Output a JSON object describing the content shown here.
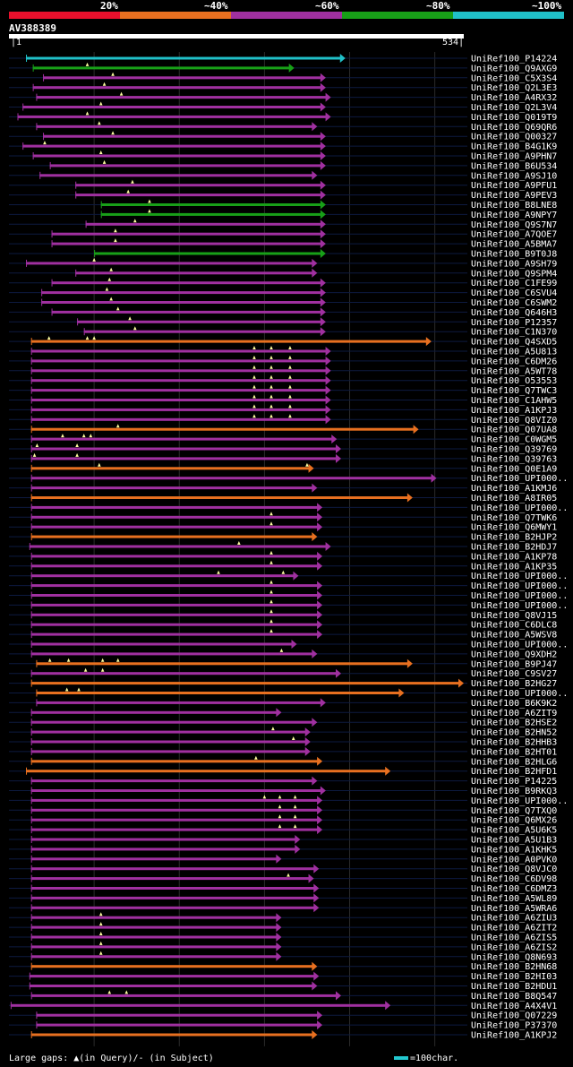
{
  "chart_data": {
    "type": "alignment-overview",
    "query": {
      "name": "AV388389",
      "start": 1,
      "end": 534
    },
    "identity_scale": [
      {
        "label": "20%",
        "color": "#e8102c"
      },
      {
        "label": "~40%",
        "color": "#e87020"
      },
      {
        "label": "~60%",
        "color": "#a030a0"
      },
      {
        "label": "~80%",
        "color": "#18a018"
      },
      {
        "label": "~100%",
        "color": "#20c0c8"
      }
    ],
    "gridlines": [
      100,
      200,
      300,
      400,
      500
    ],
    "legend": {
      "gaps": "Large gaps: ▲(in Query)/- (in Subject)",
      "scale": "=100char."
    },
    "hits": [
      {
        "name": "UniRef100_P14224",
        "start": 20,
        "end": 395,
        "color": "cyan",
        "gaps": []
      },
      {
        "name": "UniRef100_Q9AXG9",
        "start": 28,
        "end": 335,
        "color": "green",
        "gaps": [
          92
        ]
      },
      {
        "name": "UniRef100_C5X3S4",
        "start": 40,
        "end": 372,
        "color": "purple",
        "gaps": [
          122
        ]
      },
      {
        "name": "UniRef100_Q2L3E3",
        "start": 28,
        "end": 372,
        "color": "purple",
        "gaps": [
          112
        ]
      },
      {
        "name": "UniRef100_A4RX32",
        "start": 32,
        "end": 378,
        "color": "purple",
        "gaps": [
          132
        ]
      },
      {
        "name": "UniRef100_Q2L3V4",
        "start": 16,
        "end": 372,
        "color": "purple",
        "gaps": [
          108
        ]
      },
      {
        "name": "UniRef100_Q019T9",
        "start": 10,
        "end": 378,
        "color": "purple",
        "gaps": [
          92
        ]
      },
      {
        "name": "UniRef100_Q69QR6",
        "start": 32,
        "end": 362,
        "color": "purple",
        "gaps": [
          106
        ]
      },
      {
        "name": "UniRef100_Q00327",
        "start": 40,
        "end": 372,
        "color": "purple",
        "gaps": [
          122
        ]
      },
      {
        "name": "UniRef100_B4G1K9",
        "start": 16,
        "end": 372,
        "color": "purple",
        "gaps": [
          42
        ]
      },
      {
        "name": "UniRef100_A9PHN7",
        "start": 28,
        "end": 372,
        "color": "purple",
        "gaps": [
          108
        ]
      },
      {
        "name": "UniRef100_B6U534",
        "start": 48,
        "end": 372,
        "color": "purple",
        "gaps": [
          112
        ]
      },
      {
        "name": "UniRef100_A9SJ10",
        "start": 36,
        "end": 362,
        "color": "purple",
        "gaps": []
      },
      {
        "name": "UniRef100_A9PFU1",
        "start": 78,
        "end": 372,
        "color": "purple",
        "gaps": [
          145
        ]
      },
      {
        "name": "UniRef100_A9PEV3",
        "start": 78,
        "end": 372,
        "color": "purple",
        "gaps": [
          140
        ]
      },
      {
        "name": "UniRef100_B8LNE8",
        "start": 108,
        "end": 372,
        "color": "green",
        "gaps": [
          165
        ]
      },
      {
        "name": "UniRef100_A9NPY7",
        "start": 108,
        "end": 372,
        "color": "green",
        "gaps": [
          165
        ]
      },
      {
        "name": "UniRef100_Q9S7N7",
        "start": 90,
        "end": 372,
        "color": "purple",
        "gaps": [
          148
        ]
      },
      {
        "name": "UniRef100_A7QOE7",
        "start": 50,
        "end": 372,
        "color": "purple",
        "gaps": [
          125
        ]
      },
      {
        "name": "UniRef100_A5BMA7",
        "start": 50,
        "end": 372,
        "color": "purple",
        "gaps": [
          125
        ]
      },
      {
        "name": "UniRef100_B9T0J8",
        "start": 100,
        "end": 372,
        "color": "green",
        "gaps": []
      },
      {
        "name": "UniRef100_A9SH79",
        "start": 20,
        "end": 362,
        "color": "purple",
        "gaps": [
          100
        ]
      },
      {
        "name": "UniRef100_Q9SPM4",
        "start": 78,
        "end": 362,
        "color": "purple",
        "gaps": [
          120
        ]
      },
      {
        "name": "UniRef100_C1FE99",
        "start": 50,
        "end": 372,
        "color": "purple",
        "gaps": [
          118
        ]
      },
      {
        "name": "UniRef100_C6SVU4",
        "start": 38,
        "end": 372,
        "color": "purple",
        "gaps": [
          115
        ]
      },
      {
        "name": "UniRef100_C6SWM2",
        "start": 38,
        "end": 372,
        "color": "purple",
        "gaps": [
          120
        ]
      },
      {
        "name": "UniRef100_Q646H3",
        "start": 50,
        "end": 372,
        "color": "purple",
        "gaps": [
          128
        ]
      },
      {
        "name": "UniRef100_P12357",
        "start": 80,
        "end": 372,
        "color": "purple",
        "gaps": [
          142
        ]
      },
      {
        "name": "UniRef100_C1N370",
        "start": 88,
        "end": 372,
        "color": "purple",
        "gaps": [
          148
        ]
      },
      {
        "name": "UniRef100_Q4SXD5",
        "start": 26,
        "end": 496,
        "color": "orange",
        "gaps": [
          47,
          92,
          100
        ]
      },
      {
        "name": "UniRef100_A5U813",
        "start": 26,
        "end": 378,
        "color": "purple",
        "gaps": [
          288,
          308,
          330
        ]
      },
      {
        "name": "UniRef100_C6DM26",
        "start": 26,
        "end": 378,
        "color": "purple",
        "gaps": [
          288,
          308,
          330
        ]
      },
      {
        "name": "UniRef100_A5WT78",
        "start": 26,
        "end": 378,
        "color": "purple",
        "gaps": [
          288,
          308,
          330
        ]
      },
      {
        "name": "UniRef100_O53553",
        "start": 26,
        "end": 378,
        "color": "purple",
        "gaps": [
          288,
          308,
          330
        ]
      },
      {
        "name": "UniRef100_Q7TWC3",
        "start": 26,
        "end": 378,
        "color": "purple",
        "gaps": [
          288,
          308,
          330
        ]
      },
      {
        "name": "UniRef100_C1AHW5",
        "start": 26,
        "end": 378,
        "color": "purple",
        "gaps": [
          288,
          308,
          330
        ]
      },
      {
        "name": "UniRef100_A1KPJ3",
        "start": 26,
        "end": 378,
        "color": "purple",
        "gaps": [
          288,
          308,
          330
        ]
      },
      {
        "name": "UniRef100_Q8VIZ0",
        "start": 26,
        "end": 378,
        "color": "purple",
        "gaps": [
          288,
          308,
          330
        ]
      },
      {
        "name": "UniRef100_Q07UA8",
        "start": 26,
        "end": 481,
        "color": "orange",
        "gaps": [
          128
        ]
      },
      {
        "name": "UniRef100_C0WGM5",
        "start": 26,
        "end": 385,
        "color": "purple",
        "gaps": [
          63,
          88,
          96
        ]
      },
      {
        "name": "UniRef100_Q39769",
        "start": 26,
        "end": 390,
        "color": "purple",
        "gaps": [
          33,
          80
        ]
      },
      {
        "name": "UniRef100_Q39763",
        "start": 26,
        "end": 390,
        "color": "purple",
        "gaps": [
          30,
          80
        ]
      },
      {
        "name": "UniRef100_Q0E1A9",
        "start": 26,
        "end": 358,
        "color": "orange",
        "gaps": [
          106,
          350
        ]
      },
      {
        "name": "UniRef100_UPI000..",
        "start": 26,
        "end": 502,
        "color": "purple",
        "gaps": []
      },
      {
        "name": "UniRef100_A1KMJ6",
        "start": 26,
        "end": 362,
        "color": "purple",
        "gaps": []
      },
      {
        "name": "UniRef100_A8IR05",
        "start": 26,
        "end": 474,
        "color": "orange",
        "gaps": []
      },
      {
        "name": "UniRef100_UPI000..",
        "start": 26,
        "end": 368,
        "color": "purple",
        "gaps": []
      },
      {
        "name": "UniRef100_Q7TWK6",
        "start": 26,
        "end": 368,
        "color": "purple",
        "gaps": [
          308
        ]
      },
      {
        "name": "UniRef100_Q6MWY1",
        "start": 26,
        "end": 368,
        "color": "purple",
        "gaps": [
          308
        ]
      },
      {
        "name": "UniRef100_B2HJP2",
        "start": 26,
        "end": 362,
        "color": "orange",
        "gaps": []
      },
      {
        "name": "UniRef100_B2HDJ7",
        "start": 24,
        "end": 378,
        "color": "purple",
        "gaps": [
          270
        ]
      },
      {
        "name": "UniRef100_A1KP78",
        "start": 26,
        "end": 368,
        "color": "purple",
        "gaps": [
          308
        ]
      },
      {
        "name": "UniRef100_A1KP35",
        "start": 26,
        "end": 368,
        "color": "purple",
        "gaps": [
          308
        ]
      },
      {
        "name": "UniRef100_UPI000..",
        "start": 26,
        "end": 340,
        "color": "purple",
        "gaps": [
          246,
          322
        ]
      },
      {
        "name": "UniRef100_UPI000..",
        "start": 26,
        "end": 368,
        "color": "purple",
        "gaps": [
          308
        ]
      },
      {
        "name": "UniRef100_UPI000..",
        "start": 26,
        "end": 368,
        "color": "purple",
        "gaps": [
          308
        ]
      },
      {
        "name": "UniRef100_UPI000..",
        "start": 26,
        "end": 368,
        "color": "purple",
        "gaps": [
          308
        ]
      },
      {
        "name": "UniRef100_Q8VJ15",
        "start": 26,
        "end": 368,
        "color": "purple",
        "gaps": [
          308
        ]
      },
      {
        "name": "UniRef100_C6DLC8",
        "start": 26,
        "end": 368,
        "color": "purple",
        "gaps": [
          308
        ]
      },
      {
        "name": "UniRef100_A5WSV8",
        "start": 26,
        "end": 368,
        "color": "purple",
        "gaps": [
          308
        ]
      },
      {
        "name": "UniRef100_UPI000..",
        "start": 26,
        "end": 338,
        "color": "purple",
        "gaps": []
      },
      {
        "name": "UniRef100_Q9XDH2",
        "start": 26,
        "end": 362,
        "color": "purple",
        "gaps": [
          320
        ]
      },
      {
        "name": "UniRef100_B9PJ47",
        "start": 32,
        "end": 474,
        "color": "orange",
        "gaps": [
          48,
          70,
          110,
          128
        ]
      },
      {
        "name": "UniRef100_C9SV27",
        "start": 26,
        "end": 390,
        "color": "purple",
        "gaps": [
          90,
          110
        ]
      },
      {
        "name": "UniRef100_B2HG27",
        "start": 26,
        "end": 534,
        "color": "orange",
        "gaps": []
      },
      {
        "name": "UniRef100_UPI000..",
        "start": 32,
        "end": 464,
        "color": "orange",
        "gaps": [
          68,
          82
        ]
      },
      {
        "name": "UniRef100_B6K9K2",
        "start": 32,
        "end": 372,
        "color": "purple",
        "gaps": []
      },
      {
        "name": "UniRef100_A6ZIT9",
        "start": 26,
        "end": 320,
        "color": "purple",
        "gaps": []
      },
      {
        "name": "UniRef100_B2HSE2",
        "start": 26,
        "end": 362,
        "color": "purple",
        "gaps": []
      },
      {
        "name": "UniRef100_B2HN52",
        "start": 26,
        "end": 354,
        "color": "purple",
        "gaps": [
          310
        ]
      },
      {
        "name": "UniRef100_B2HHB3",
        "start": 26,
        "end": 354,
        "color": "purple",
        "gaps": [
          334
        ]
      },
      {
        "name": "UniRef100_B2HT01",
        "start": 26,
        "end": 354,
        "color": "purple",
        "gaps": []
      },
      {
        "name": "UniRef100_B2HLG6",
        "start": 26,
        "end": 368,
        "color": "orange",
        "gaps": [
          290
        ]
      },
      {
        "name": "UniRef100_B2HFD1",
        "start": 20,
        "end": 448,
        "color": "orange",
        "gaps": []
      },
      {
        "name": "UniRef100_P14225",
        "start": 26,
        "end": 362,
        "color": "purple",
        "gaps": []
      },
      {
        "name": "UniRef100_B9RKQ3",
        "start": 26,
        "end": 372,
        "color": "purple",
        "gaps": []
      },
      {
        "name": "UniRef100_UPI000..",
        "start": 26,
        "end": 368,
        "color": "purple",
        "gaps": [
          300,
          318,
          336
        ]
      },
      {
        "name": "UniRef100_Q7TXQ0",
        "start": 26,
        "end": 368,
        "color": "purple",
        "gaps": [
          318,
          336
        ]
      },
      {
        "name": "UniRef100_Q6MX26",
        "start": 26,
        "end": 368,
        "color": "purple",
        "gaps": [
          318,
          336
        ]
      },
      {
        "name": "UniRef100_A5U6K5",
        "start": 26,
        "end": 368,
        "color": "purple",
        "gaps": [
          318,
          336
        ]
      },
      {
        "name": "UniRef100_A5U1B3",
        "start": 26,
        "end": 342,
        "color": "purple",
        "gaps": []
      },
      {
        "name": "UniRef100_A1KHK5",
        "start": 26,
        "end": 342,
        "color": "purple",
        "gaps": []
      },
      {
        "name": "UniRef100_A0PVK0",
        "start": 26,
        "end": 320,
        "color": "purple",
        "gaps": []
      },
      {
        "name": "UniRef100_Q8VJC0",
        "start": 26,
        "end": 364,
        "color": "purple",
        "gaps": []
      },
      {
        "name": "UniRef100_C6DV98",
        "start": 26,
        "end": 358,
        "color": "purple",
        "gaps": [
          328
        ]
      },
      {
        "name": "UniRef100_C6DMZ3",
        "start": 26,
        "end": 364,
        "color": "purple",
        "gaps": []
      },
      {
        "name": "UniRef100_A5WL89",
        "start": 26,
        "end": 364,
        "color": "purple",
        "gaps": []
      },
      {
        "name": "UniRef100_A5WRA6",
        "start": 26,
        "end": 364,
        "color": "purple",
        "gaps": []
      },
      {
        "name": "UniRef100_A6ZIU3",
        "start": 26,
        "end": 320,
        "color": "purple",
        "gaps": [
          108
        ]
      },
      {
        "name": "UniRef100_A6ZIT2",
        "start": 26,
        "end": 320,
        "color": "purple",
        "gaps": [
          108
        ]
      },
      {
        "name": "UniRef100_A6ZIS5",
        "start": 26,
        "end": 320,
        "color": "purple",
        "gaps": [
          108
        ]
      },
      {
        "name": "UniRef100_A6ZIS2",
        "start": 26,
        "end": 320,
        "color": "purple",
        "gaps": [
          108
        ]
      },
      {
        "name": "UniRef100_Q8N693",
        "start": 26,
        "end": 320,
        "color": "purple",
        "gaps": [
          108
        ]
      },
      {
        "name": "UniRef100_B2HN68",
        "start": 26,
        "end": 362,
        "color": "orange",
        "gaps": []
      },
      {
        "name": "UniRef100_B2HI03",
        "start": 24,
        "end": 364,
        "color": "purple",
        "gaps": []
      },
      {
        "name": "UniRef100_B2HDU1",
        "start": 24,
        "end": 362,
        "color": "purple",
        "gaps": []
      },
      {
        "name": "UniRef100_B8Q547",
        "start": 26,
        "end": 390,
        "color": "purple",
        "gaps": [
          118,
          138
        ]
      },
      {
        "name": "UniRef100_A4X4V1",
        "start": 2,
        "end": 448,
        "color": "purple",
        "gaps": []
      },
      {
        "name": "UniRef100_Q07229",
        "start": 32,
        "end": 368,
        "color": "purple",
        "gaps": []
      },
      {
        "name": "UniRef100_P37370",
        "start": 32,
        "end": 368,
        "color": "purple",
        "gaps": []
      },
      {
        "name": "UniRef100_A1KPJ2",
        "start": 26,
        "end": 362,
        "color": "orange",
        "gaps": []
      }
    ]
  }
}
